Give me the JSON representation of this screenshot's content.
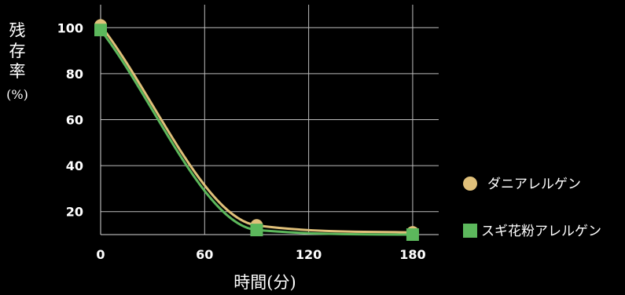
{
  "chart_data": {
    "type": "line",
    "title": "",
    "xlabel": "時間(分)",
    "ylabel": "残存率(%)",
    "ylabel_chars": [
      "残",
      "存",
      "率",
      "(%)"
    ],
    "x": [
      0,
      90,
      180
    ],
    "xticks": [
      "0",
      "60",
      "120",
      "180"
    ],
    "yticks": [
      "20",
      "40",
      "60",
      "80",
      "100"
    ],
    "xlim": [
      0,
      195
    ],
    "ylim": [
      10,
      110
    ],
    "grid": true,
    "legend_position": "right",
    "series": [
      {
        "name": "ダニアレルゲン",
        "values": [
          101,
          14,
          11
        ],
        "color": "#e0c07a",
        "marker": "circle"
      },
      {
        "name": "スギ花粉アレルゲン",
        "values": [
          99,
          12,
          10
        ],
        "color": "#5cb85c",
        "marker": "square"
      }
    ]
  }
}
